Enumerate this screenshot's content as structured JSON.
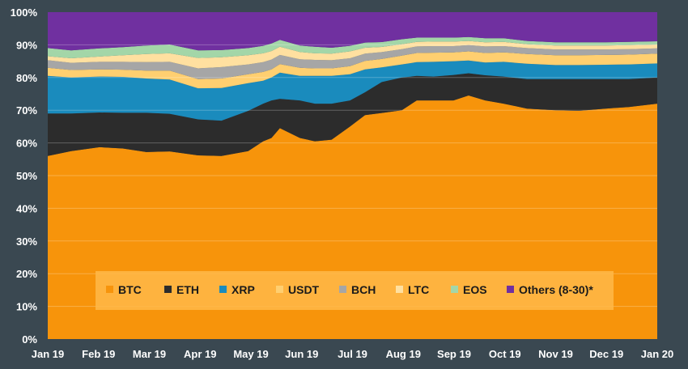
{
  "chart_data": {
    "type": "area",
    "stacked": "percent",
    "x_ticks": [
      "Jan 19",
      "Feb 19",
      "Mar 19",
      "Apr 19",
      "May 19",
      "Jun 19",
      "Jul 19",
      "Aug 19",
      "Sep 19",
      "Oct 19",
      "Nov 19",
      "Dec 19",
      "Jan 20"
    ],
    "y_ticks": [
      "0%",
      "10%",
      "20%",
      "30%",
      "40%",
      "50%",
      "60%",
      "70%",
      "80%",
      "90%",
      "100%"
    ],
    "ylim": [
      0,
      100
    ],
    "grid": true,
    "legend_position": "bottom-center",
    "x": [
      "2019-01-01",
      "2019-01-15",
      "2019-02-01",
      "2019-02-15",
      "2019-03-01",
      "2019-03-15",
      "2019-04-01",
      "2019-04-15",
      "2019-05-01",
      "2019-05-10",
      "2019-05-15",
      "2019-05-20",
      "2019-06-01",
      "2019-06-10",
      "2019-06-20",
      "2019-07-01",
      "2019-07-10",
      "2019-07-20",
      "2019-08-01",
      "2019-08-10",
      "2019-08-20",
      "2019-09-01",
      "2019-09-10",
      "2019-09-20",
      "2019-10-01",
      "2019-10-15",
      "2019-11-01",
      "2019-11-15",
      "2019-12-01",
      "2019-12-15",
      "2020-01-01"
    ],
    "series": [
      {
        "name": "BTC",
        "color": "#f7940b",
        "values": [
          56,
          57.5,
          58.7,
          58.3,
          57.2,
          57.4,
          56.2,
          56,
          57.5,
          60.5,
          61.5,
          64.5,
          61.5,
          60.5,
          61,
          65,
          68.5,
          69.5,
          70,
          73,
          73,
          73,
          74.5,
          73,
          72,
          70.5,
          70,
          69.8,
          70.5,
          71,
          72
        ]
      },
      {
        "name": "ETH",
        "color": "#2c2c2c",
        "values": [
          13,
          11.5,
          10.6,
          10.9,
          12,
          11.5,
          11,
          10.8,
          12.3,
          11.5,
          11.5,
          9,
          11.5,
          11.5,
          11,
          8,
          7,
          9.5,
          10,
          7.5,
          7.3,
          7.8,
          6.8,
          7.7,
          8.3,
          9,
          9.5,
          9.7,
          9,
          8.5,
          8
        ]
      },
      {
        "name": "XRP",
        "color": "#1a8bbd",
        "values": [
          11.5,
          11,
          11,
          11,
          10.5,
          10.5,
          9.5,
          10,
          8.5,
          7,
          7,
          8,
          7.5,
          8.5,
          8.5,
          8,
          7,
          4.5,
          4,
          4.2,
          4.5,
          4.2,
          3.9,
          3.9,
          4.5,
          4.7,
          4.3,
          4.3,
          4.4,
          4.5,
          4.3
        ]
      },
      {
        "name": "USDT",
        "color": "#ffcf70",
        "values": [
          2.5,
          2.3,
          2.2,
          2.2,
          2.4,
          2.7,
          2.8,
          2.9,
          2.7,
          2.7,
          2.5,
          2.6,
          2.5,
          2.3,
          2.3,
          2.5,
          2.6,
          2.6,
          2.7,
          2.8,
          2.8,
          2.7,
          2.8,
          2.9,
          2.9,
          3,
          3,
          3,
          3,
          3,
          3
        ]
      },
      {
        "name": "BCH",
        "color": "#a6a6a6",
        "values": [
          2.3,
          2.2,
          2.3,
          2.4,
          2.6,
          2.7,
          3.3,
          3.5,
          3,
          3,
          3,
          2.8,
          2.6,
          2.6,
          2.5,
          2.4,
          2.2,
          2.1,
          2,
          2,
          2,
          1.9,
          1.9,
          2,
          1.9,
          1.8,
          1.8,
          1.8,
          1.7,
          1.7,
          1.6
        ]
      },
      {
        "name": "LTC",
        "color": "#ffe0a0",
        "values": [
          1.2,
          1.4,
          1.6,
          2,
          2.5,
          2.6,
          3.2,
          3,
          2.8,
          2.7,
          2.6,
          2.5,
          2.2,
          2,
          2,
          2.1,
          1.8,
          1.6,
          1.5,
          1.4,
          1.4,
          1.4,
          1.3,
          1.3,
          1.3,
          1.2,
          1.2,
          1.2,
          1.2,
          1.2,
          1.2
        ]
      },
      {
        "name": "EOS",
        "color": "#a3d6a8",
        "values": [
          2.5,
          2.4,
          2.5,
          2.5,
          2.6,
          2.7,
          2.3,
          2.2,
          2.2,
          2.3,
          2.3,
          2.1,
          2,
          2,
          1.8,
          1.7,
          1.6,
          1.5,
          1.5,
          1.3,
          1.2,
          1.2,
          1.2,
          1.2,
          1.1,
          1,
          1,
          1,
          1,
          1,
          1
        ]
      },
      {
        "name": "Others (8-30)*",
        "color": "#7030a0",
        "values": [
          11,
          11.7,
          11.1,
          10.7,
          10.2,
          9.9,
          11.7,
          11.6,
          11,
          10.3,
          9.6,
          8.5,
          10.2,
          10.6,
          10.9,
          10.3,
          9.3,
          9.2,
          8.3,
          7.8,
          7.8,
          7.8,
          7.6,
          8,
          8,
          8.8,
          9.2,
          9.2,
          9.2,
          9.1,
          8.9
        ]
      }
    ]
  }
}
